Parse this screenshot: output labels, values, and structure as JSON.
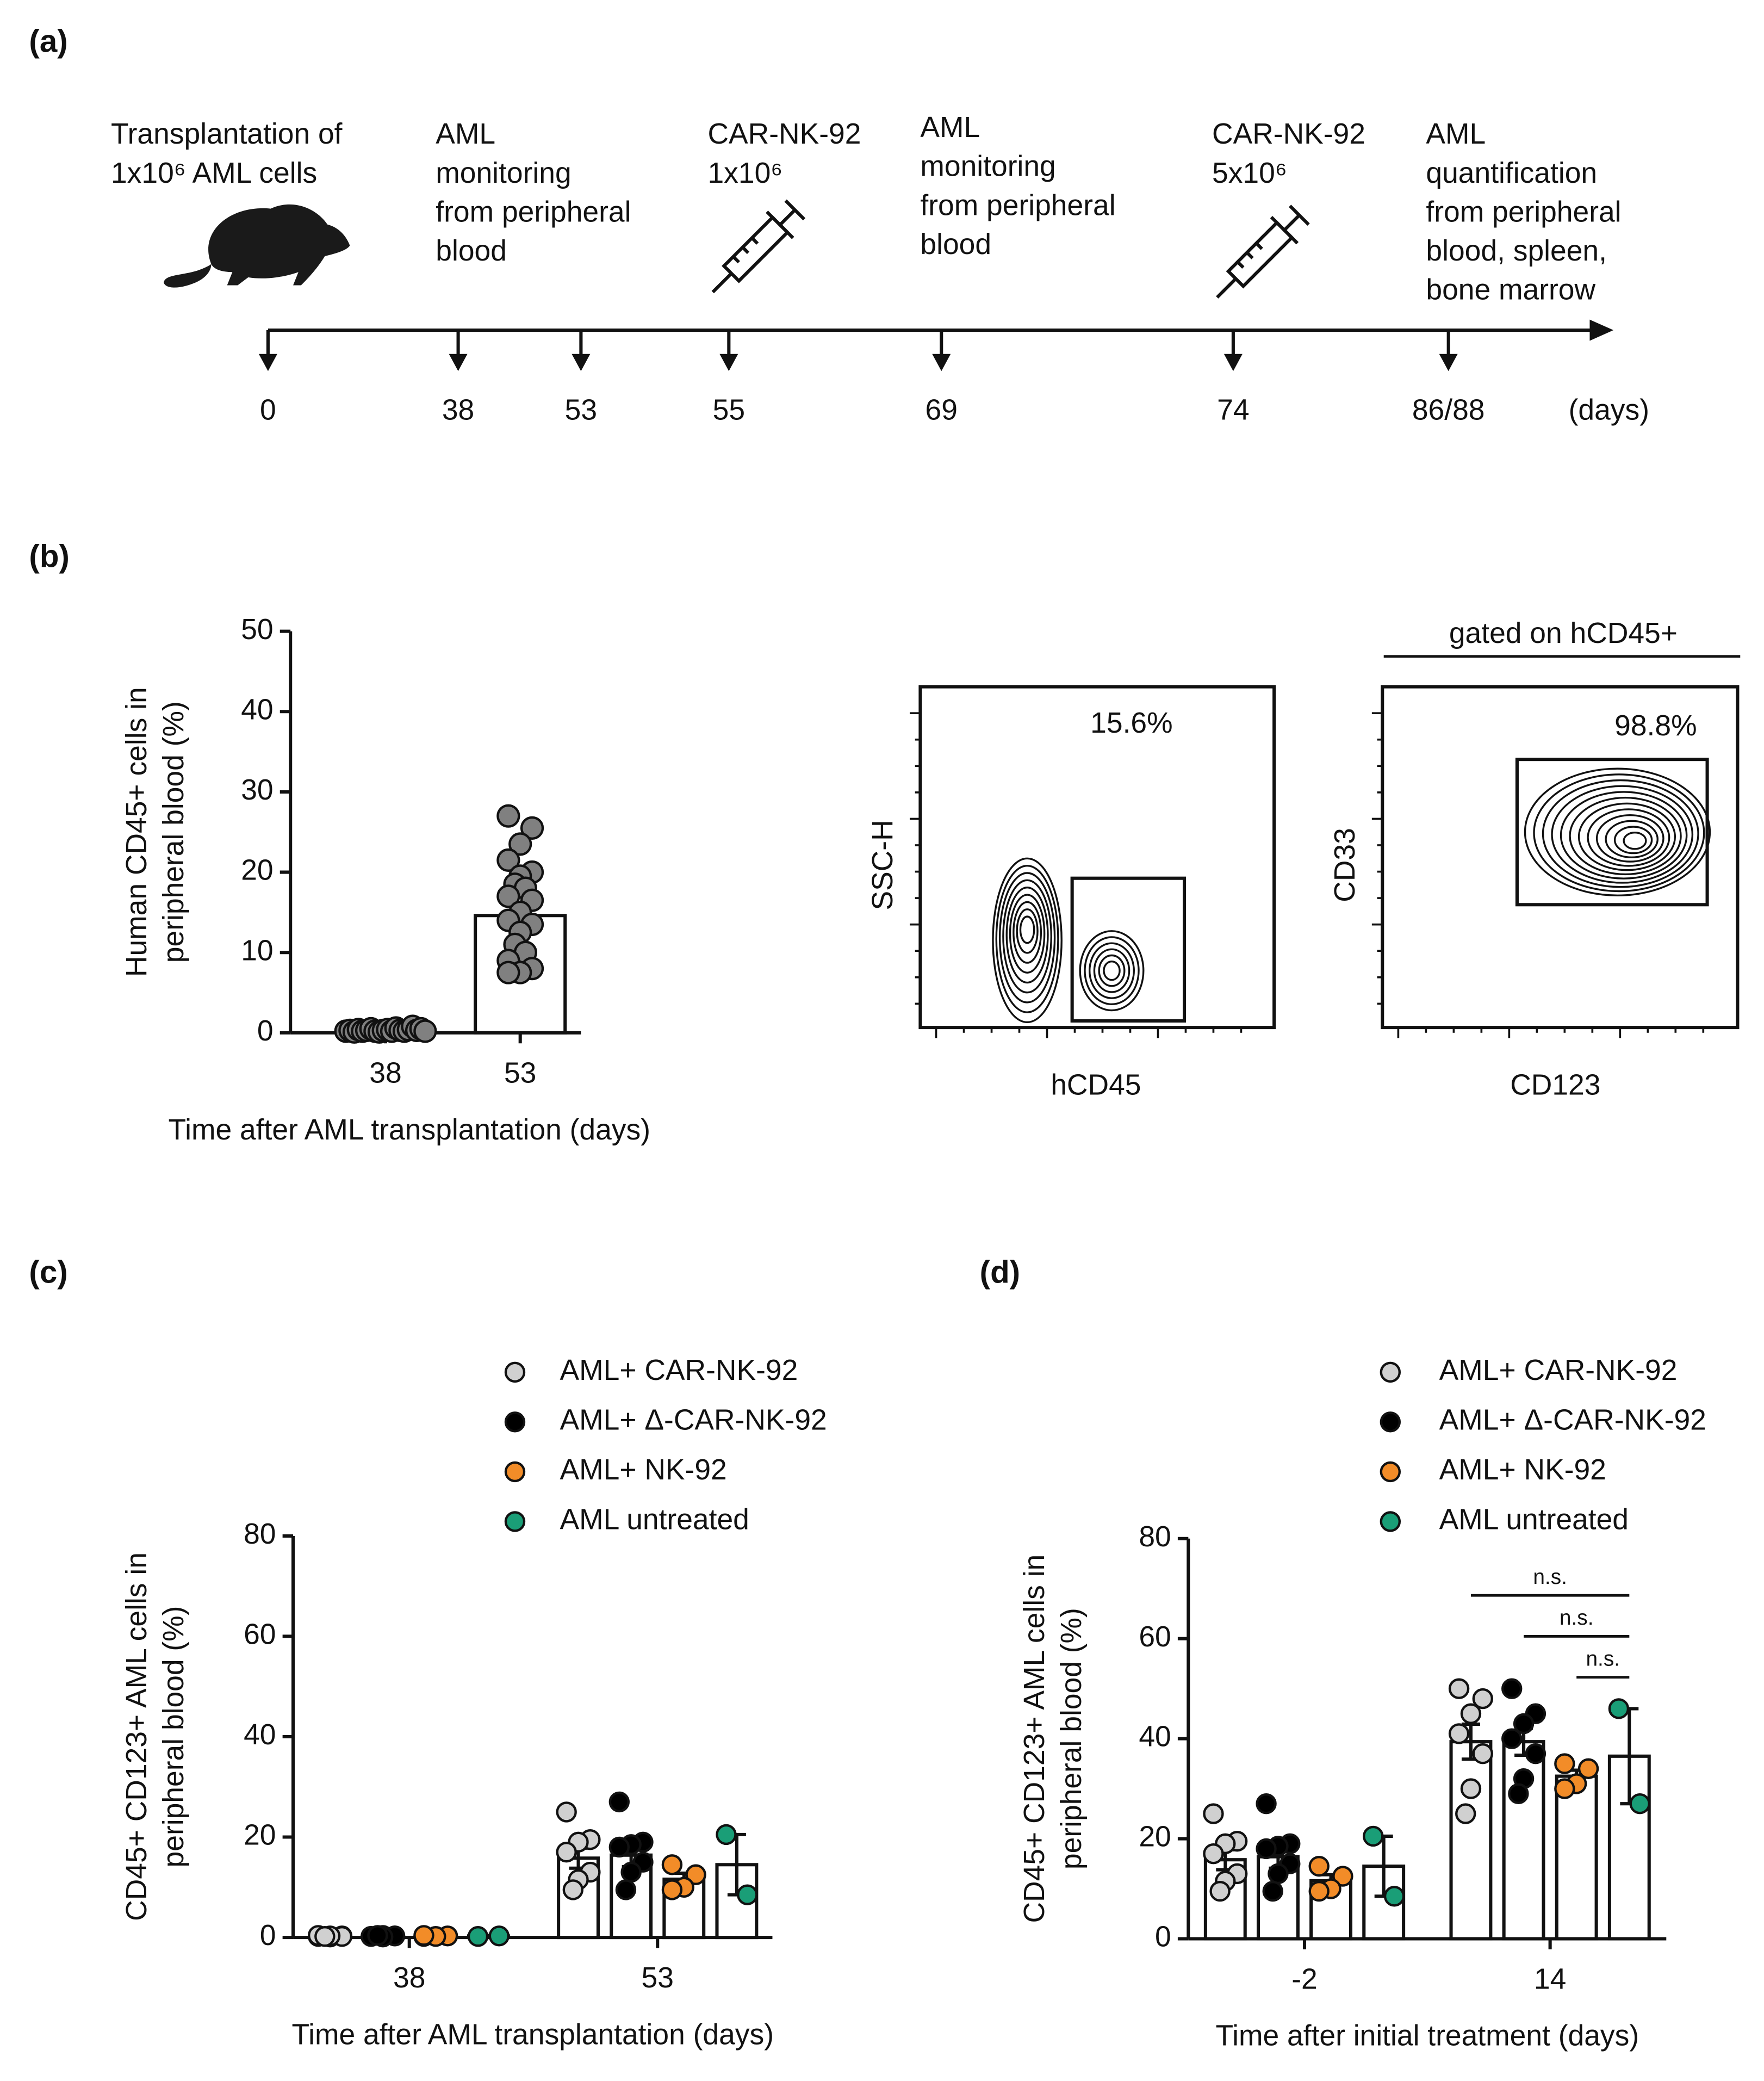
{
  "panel_labels": [
    "(a)",
    "(b)",
    "(c)",
    "(d)"
  ],
  "panel_a": {
    "events": [
      {
        "lines": [
          "Transplantation of",
          "1x10⁶ AML cells"
        ]
      },
      {
        "lines": [
          "AML",
          "monitoring",
          "from peripheral",
          "blood"
        ]
      },
      {
        "lines": [
          "CAR-NK-92",
          "1x10⁶"
        ]
      },
      {
        "lines": [
          "AML",
          "monitoring",
          "from peripheral",
          "blood"
        ]
      },
      {
        "lines": [
          "CAR-NK-92",
          "5x10⁶"
        ]
      },
      {
        "lines": [
          "AML",
          "quantification",
          "from peripheral",
          "blood, spleen,",
          "bone marrow"
        ]
      }
    ],
    "days": [
      "0",
      "38",
      "53",
      "55",
      "69",
      "74",
      "86/88"
    ],
    "unit": "(days)"
  },
  "flow_plots": [
    {
      "gate_label": "15.6%",
      "ylabel": "SSC-H",
      "xlabel": "hCD45"
    },
    {
      "title": "gated on hCD45+",
      "gate_label": "98.8%",
      "ylabel": "CD33",
      "xlabel": "CD123"
    }
  ],
  "chart_data": [
    {
      "type": "bar_scatter",
      "categories": [
        "38",
        "53"
      ],
      "values": [
        0.3,
        14.6
      ],
      "color": "#ffffff",
      "point_color": "#808080",
      "points": [
        [
          0.2,
          0.3,
          0.1,
          0.4,
          0.2,
          0.3,
          0.5,
          0.2,
          0.1,
          0.3,
          0.4,
          0.2,
          0.6,
          0.3,
          0.2,
          0.4,
          0.8,
          0.3,
          0.5,
          0.2
        ],
        [
          27,
          25.5,
          23.5,
          21.5,
          20,
          19.5,
          18.5,
          18,
          17,
          16.5,
          15,
          14,
          13.5,
          12.5,
          11,
          10,
          9,
          8,
          7.5,
          7.5
        ]
      ],
      "ylim": [
        0,
        50
      ],
      "yticks": [
        0,
        10,
        20,
        30,
        40,
        50
      ],
      "ylabel": [
        "Human CD45+ cells in",
        "peripheral blood (%)"
      ],
      "xlabel": "Time after AML transplantation (days)"
    },
    {
      "type": "grouped_bar_scatter",
      "categories": [
        "38",
        "53"
      ],
      "series": [
        {
          "name": "AML+ CAR-NK-92",
          "color": "#d0d0d0",
          "values": [
            0.3,
            15.8
          ],
          "errors": [
            0.1,
            2
          ],
          "points": [
            [
              0.2,
              0.3,
              0.1,
              0.4,
              0.2,
              0.3,
              0.2
            ],
            [
              25,
              19.5,
              19,
              17,
              13,
              11.5,
              9.5
            ]
          ]
        },
        {
          "name": "AML+ Δ-CAR-NK-92",
          "color": "#000000",
          "values": [
            0.3,
            16.4
          ],
          "errors": [
            0.1,
            2.3
          ],
          "points": [
            [
              0.2,
              0.3,
              0.4,
              0.2,
              0.3,
              0.1,
              0.4
            ],
            [
              27,
              19,
              18.5,
              18,
              15,
              13,
              9.5
            ]
          ]
        },
        {
          "name": "AML+ NK-92",
          "color": "#f28c28",
          "values": [
            0.3,
            11.6
          ],
          "errors": [
            0.1,
            1.2
          ],
          "points": [
            [
              0.2,
              0.3,
              0.2,
              0.4
            ],
            [
              14.5,
              12.5,
              10,
              9.5
            ]
          ]
        },
        {
          "name": "AML untreated",
          "color": "#1a9e77",
          "values": [
            0.3,
            14.5
          ],
          "errors": [
            0.1,
            6
          ],
          "points": [
            [
              0.2,
              0.3
            ],
            [
              20.5,
              8.5
            ]
          ]
        }
      ],
      "ylim": [
        0,
        80
      ],
      "yticks": [
        0,
        20,
        40,
        60,
        80
      ],
      "ylabel": [
        "CD45+ CD123+ AML cells in",
        "peripheral blood (%)"
      ],
      "xlabel": "Time after AML transplantation (days)"
    },
    {
      "type": "grouped_bar_scatter",
      "categories": [
        "-2",
        "14"
      ],
      "series": [
        {
          "name": "AML+ CAR-NK-92",
          "color": "#d0d0d0",
          "values": [
            15.8,
            39.4
          ],
          "errors": [
            2,
            3.5
          ],
          "points": [
            [
              25,
              19.5,
              19,
              17,
              13,
              11.5,
              9.5
            ],
            [
              50,
              48,
              45,
              41,
              37,
              30,
              25
            ]
          ]
        },
        {
          "name": "AML+ Δ-CAR-NK-92",
          "color": "#000000",
          "values": [
            16.4,
            39.4
          ],
          "errors": [
            2.3,
            2.7
          ],
          "points": [
            [
              27,
              19,
              18.5,
              18,
              15,
              13,
              9.5
            ],
            [
              50,
              45,
              43,
              40,
              37,
              32,
              29
            ]
          ]
        },
        {
          "name": "AML+ NK-92",
          "color": "#f28c28",
          "values": [
            11.6,
            32.5
          ],
          "errors": [
            1.2,
            1.2
          ],
          "points": [
            [
              14.5,
              12.5,
              10,
              9.5
            ],
            [
              35,
              34,
              31,
              30
            ]
          ]
        },
        {
          "name": "AML untreated",
          "color": "#1a9e77",
          "values": [
            14.5,
            36.5
          ],
          "errors": [
            6,
            9.5
          ],
          "points": [
            [
              20.5,
              8.5
            ],
            [
              46,
              27
            ]
          ]
        }
      ],
      "ylim": [
        0,
        80
      ],
      "yticks": [
        0,
        20,
        40,
        60,
        80
      ],
      "ylabel": [
        "CD45+ CD123+ AML cells in",
        "peripheral blood (%)"
      ],
      "xlabel": "Time after initial treatment (days)",
      "annotations": [
        "n.s.",
        "n.s.",
        "n.s."
      ]
    }
  ]
}
